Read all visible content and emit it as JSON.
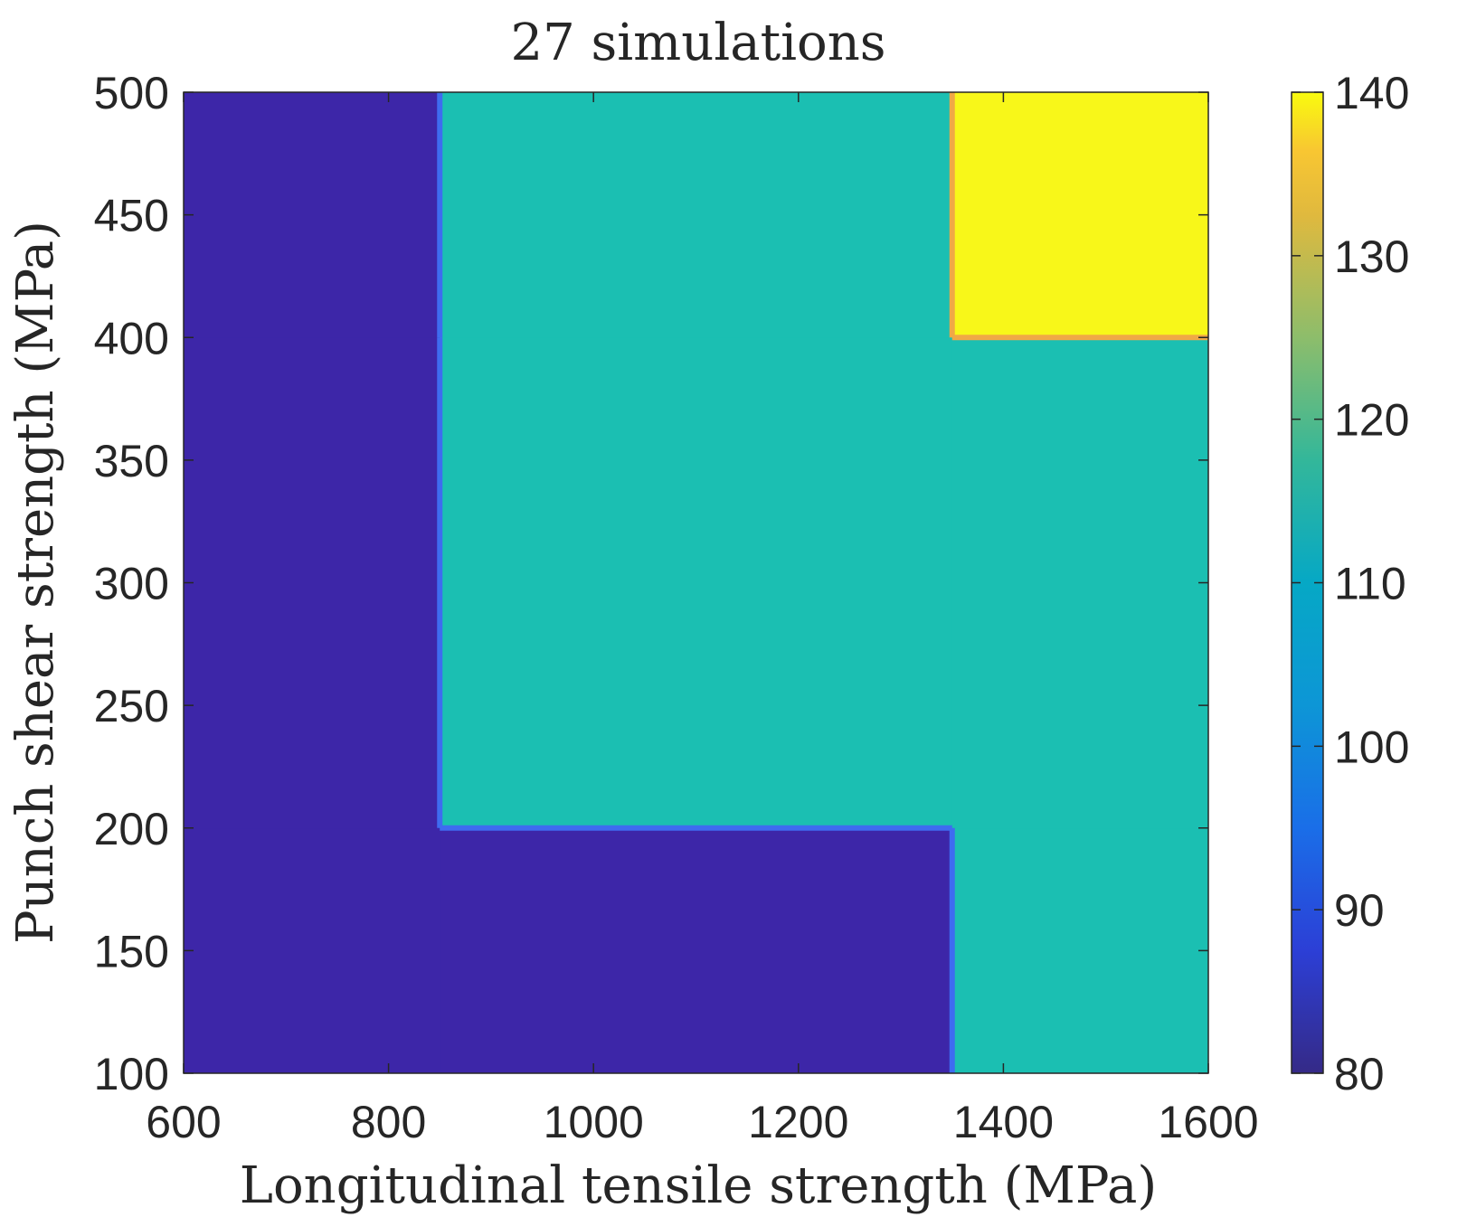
{
  "chart_data": {
    "type": "heatmap",
    "title": "27 simulations",
    "xlabel": "Longitudinal tensile strength (MPa)",
    "ylabel": "Punch shear strength (MPa)",
    "xlim": [
      600,
      1600
    ],
    "ylim": [
      100,
      500
    ],
    "x_ticks": [
      "600",
      "800",
      "1000",
      "1200",
      "1400",
      "1600"
    ],
    "y_ticks": [
      "100",
      "150",
      "200",
      "250",
      "300",
      "350",
      "400",
      "450",
      "500"
    ],
    "colorbar": {
      "colormap": "parula",
      "range": [
        80,
        140
      ],
      "ticks": [
        "80",
        "90",
        "100",
        "110",
        "120",
        "130",
        "140"
      ]
    },
    "x_grid": [
      600,
      1100,
      1600
    ],
    "y_grid": [
      100,
      300,
      500
    ],
    "values": [
      [
        80,
        80,
        110
      ],
      [
        80,
        110,
        110
      ],
      [
        80,
        110,
        140
      ]
    ],
    "value_note_rows": "rows ordered by y ascending (100, 300, 500); columns by x ascending (600, 1100, 1600)",
    "colors": {
      "low": "#3d26a8",
      "mid": "#1bbfb2",
      "high": "#f8f719",
      "edge_low_mid": "#3e6cf0",
      "edge_mid_high": "#f0a846"
    }
  }
}
